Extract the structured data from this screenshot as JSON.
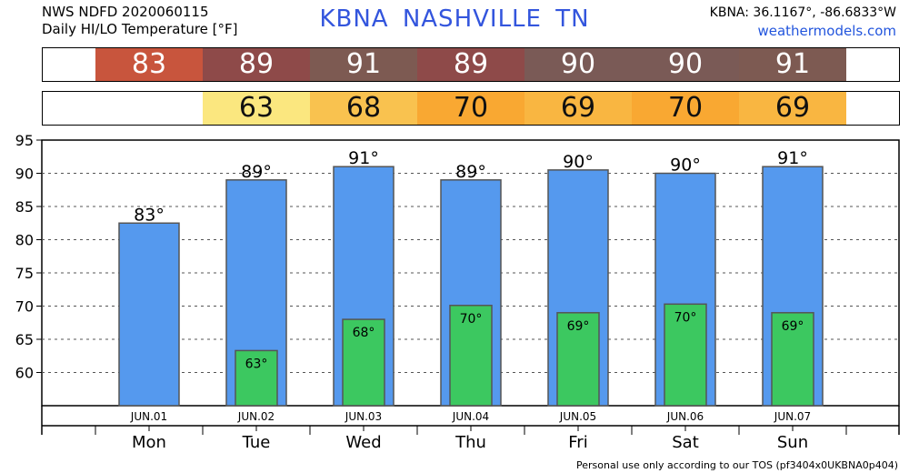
{
  "header": {
    "line1": "NWS NDFD 2020060115",
    "line2": "Daily HI/LO Temperature [°F]",
    "station": "KBNA  NASHVILLE      TN",
    "coords": "KBNA: 36.1167°, -86.6833°W",
    "site": "weathermodels.com"
  },
  "hi_strip": [
    {
      "value": "83",
      "color": "#c8553d"
    },
    {
      "value": "89",
      "color": "#8e4a49"
    },
    {
      "value": "91",
      "color": "#7d5a52"
    },
    {
      "value": "89",
      "color": "#8e4a49"
    },
    {
      "value": "90",
      "color": "#7a5a56"
    },
    {
      "value": "90",
      "color": "#7a5a56"
    },
    {
      "value": "91",
      "color": "#7d5a52"
    }
  ],
  "lo_strip": [
    {
      "value": "",
      "color": "#ffffff"
    },
    {
      "value": "63",
      "color": "#fbe77f"
    },
    {
      "value": "68",
      "color": "#f9c24f"
    },
    {
      "value": "70",
      "color": "#f9a832"
    },
    {
      "value": "69",
      "color": "#f9b641"
    },
    {
      "value": "70",
      "color": "#f9a832"
    },
    {
      "value": "69",
      "color": "#f9b641"
    }
  ],
  "chart_data": {
    "type": "bar",
    "categories": [
      "JUN.01",
      "JUN.02",
      "JUN.03",
      "JUN.04",
      "JUN.05",
      "JUN.06",
      "JUN.07"
    ],
    "days": [
      "Mon",
      "Tue",
      "Wed",
      "Thu",
      "Fri",
      "Sat",
      "Sun"
    ],
    "ylim": [
      55,
      95
    ],
    "yticks": [
      60,
      65,
      70,
      75,
      80,
      85,
      90,
      95
    ],
    "grid": true,
    "series": [
      {
        "values": [
          82.5,
          89,
          91,
          89,
          90.5,
          90,
          91
        ],
        "labels": [
          "83°",
          "89°",
          "91°",
          "89°",
          "90°",
          "90°",
          "91°"
        ],
        "color": "#5599ee"
      },
      {
        "values": [
          null,
          63.3,
          68,
          70.1,
          69,
          70.3,
          69
        ],
        "labels": [
          "",
          "63°",
          "68°",
          "70°",
          "69°",
          "70°",
          "69°"
        ],
        "color": "#3cc860"
      }
    ]
  },
  "footer": "Personal use only according to our TOS (pf3404x0UKBNA0p404)"
}
